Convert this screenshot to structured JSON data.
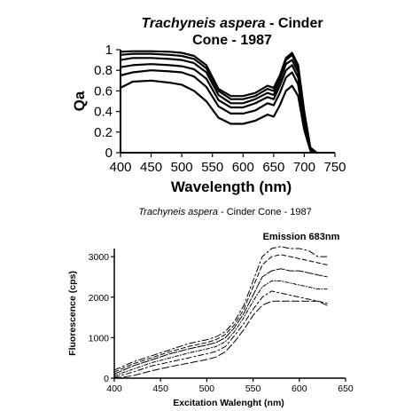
{
  "chart_data": [
    {
      "type": "line",
      "title_italic": "Trachyneis aspera",
      "title_rest_1": " - Cinder",
      "title_line_2": "Cone - 1987",
      "xlabel": "Wavelength (nm)",
      "ylabel": "Qa",
      "xlim": [
        400,
        750
      ],
      "ylim": [
        0,
        1
      ],
      "xticks": [
        400,
        450,
        500,
        550,
        600,
        650,
        700,
        750
      ],
      "yticks": [
        0,
        0.2,
        0.4,
        0.6,
        0.8,
        1
      ],
      "ytick_labels": [
        "0",
        "0.2",
        "0.4",
        "0.6",
        "0.8",
        "1"
      ],
      "grid": false,
      "x": [
        400,
        420,
        450,
        480,
        500,
        520,
        540,
        560,
        580,
        600,
        620,
        640,
        650,
        660,
        670,
        680,
        690,
        700,
        710,
        720
      ],
      "series": [
        {
          "values": [
            0.98,
            0.985,
            0.985,
            0.98,
            0.97,
            0.94,
            0.85,
            0.62,
            0.55,
            0.55,
            0.58,
            0.65,
            0.63,
            0.75,
            0.92,
            0.97,
            0.85,
            0.4,
            0.05,
            0.0
          ]
        },
        {
          "values": [
            0.95,
            0.96,
            0.96,
            0.95,
            0.94,
            0.91,
            0.82,
            0.6,
            0.52,
            0.52,
            0.55,
            0.62,
            0.6,
            0.73,
            0.9,
            0.95,
            0.82,
            0.38,
            0.04,
            0.0
          ]
        },
        {
          "values": [
            0.9,
            0.92,
            0.92,
            0.91,
            0.9,
            0.87,
            0.78,
            0.56,
            0.48,
            0.48,
            0.52,
            0.58,
            0.56,
            0.7,
            0.86,
            0.9,
            0.78,
            0.35,
            0.04,
            0.0
          ]
        },
        {
          "values": [
            0.83,
            0.85,
            0.86,
            0.85,
            0.84,
            0.81,
            0.72,
            0.51,
            0.44,
            0.44,
            0.48,
            0.54,
            0.52,
            0.65,
            0.8,
            0.85,
            0.73,
            0.32,
            0.03,
            0.0
          ]
        },
        {
          "values": [
            0.75,
            0.78,
            0.8,
            0.79,
            0.78,
            0.74,
            0.64,
            0.45,
            0.38,
            0.38,
            0.41,
            0.48,
            0.46,
            0.58,
            0.73,
            0.78,
            0.66,
            0.28,
            0.03,
            0.0
          ]
        },
        {
          "values": [
            0.63,
            0.69,
            0.7,
            0.68,
            0.66,
            0.6,
            0.5,
            0.34,
            0.28,
            0.28,
            0.31,
            0.37,
            0.35,
            0.46,
            0.6,
            0.65,
            0.55,
            0.22,
            0.02,
            0.0
          ]
        }
      ]
    },
    {
      "type": "line",
      "title_italic": "Trachyneis aspera",
      "title_rest": " - Cinder Cone - 1987",
      "subtitle": "Emission 683nm",
      "xlabel": "Excitation Walenght (nm)",
      "ylabel": "Fluorescence (cps)",
      "xlim": [
        400,
        650
      ],
      "ylim": [
        0,
        3200
      ],
      "xticks": [
        400,
        450,
        500,
        550,
        600,
        650
      ],
      "yticks": [
        0,
        1000,
        2000,
        3000
      ],
      "grid": false,
      "x": [
        400,
        420,
        440,
        460,
        480,
        500,
        510,
        520,
        530,
        540,
        550,
        560,
        570,
        580,
        590,
        600,
        610,
        620,
        630
      ],
      "series": [
        {
          "values": [
            200,
            400,
            550,
            700,
            850,
            950,
            1020,
            1150,
            1400,
            1800,
            2400,
            3000,
            3200,
            3250,
            3200,
            3200,
            3150,
            3000,
            3000
          ]
        },
        {
          "values": [
            150,
            350,
            500,
            650,
            780,
            880,
            950,
            1080,
            1320,
            1700,
            2250,
            2800,
            3000,
            3050,
            3000,
            2950,
            2900,
            2850,
            2800
          ]
        },
        {
          "values": [
            100,
            300,
            450,
            600,
            720,
            820,
            880,
            1000,
            1250,
            1600,
            2050,
            2500,
            2650,
            2700,
            2650,
            2650,
            2600,
            2550,
            2500
          ]
        },
        {
          "values": [
            60,
            220,
            380,
            500,
            620,
            720,
            780,
            900,
            1150,
            1500,
            1900,
            2250,
            2400,
            2400,
            2350,
            2300,
            2250,
            2200,
            2200
          ]
        },
        {
          "values": [
            20,
            150,
            300,
            400,
            500,
            600,
            660,
            780,
            1050,
            1350,
            1700,
            2000,
            2150,
            2100,
            2050,
            2000,
            1950,
            1900,
            1850
          ]
        },
        {
          "values": [
            0,
            60,
            180,
            280,
            370,
            460,
            520,
            650,
            900,
            1200,
            1550,
            1800,
            1900,
            1900,
            1900,
            1900,
            1900,
            1900,
            1800
          ]
        }
      ]
    }
  ]
}
